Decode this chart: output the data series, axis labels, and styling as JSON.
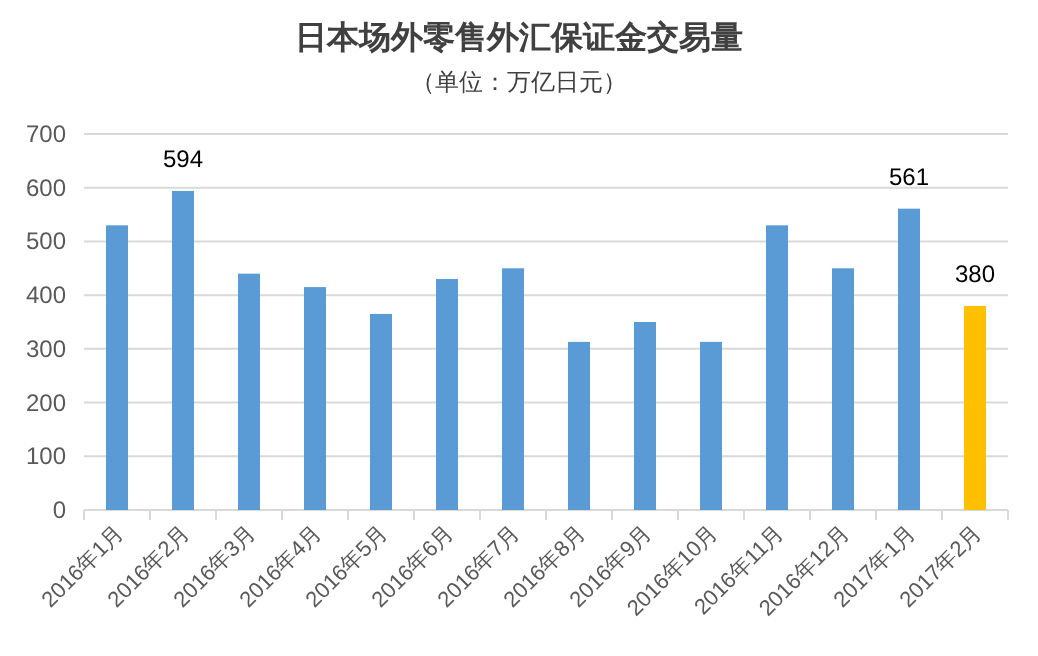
{
  "chart_data": {
    "type": "bar",
    "title": "日本场外零售外汇保证金交易量",
    "subtitle": "（单位：万亿日元）",
    "categories": [
      "2016年1月",
      "2016年2月",
      "2016年3月",
      "2016年4月",
      "2016年5月",
      "2016年6月",
      "2016年7月",
      "2016年8月",
      "2016年9月",
      "2016年10月",
      "2016年11月",
      "2016年12月",
      "2017年1月",
      "2017年2月"
    ],
    "values": [
      530,
      594,
      440,
      415,
      365,
      430,
      450,
      313,
      350,
      313,
      530,
      450,
      561,
      380
    ],
    "colors": [
      "#5b9bd5",
      "#5b9bd5",
      "#5b9bd5",
      "#5b9bd5",
      "#5b9bd5",
      "#5b9bd5",
      "#5b9bd5",
      "#5b9bd5",
      "#5b9bd5",
      "#5b9bd5",
      "#5b9bd5",
      "#5b9bd5",
      "#5b9bd5",
      "#ffc000"
    ],
    "value_labels": [
      null,
      "594",
      null,
      null,
      null,
      null,
      null,
      null,
      null,
      null,
      null,
      null,
      "561",
      "380"
    ],
    "ylim": [
      0,
      700
    ],
    "yticks": [
      0,
      100,
      200,
      300,
      400,
      500,
      600,
      700
    ],
    "grid": "y"
  }
}
